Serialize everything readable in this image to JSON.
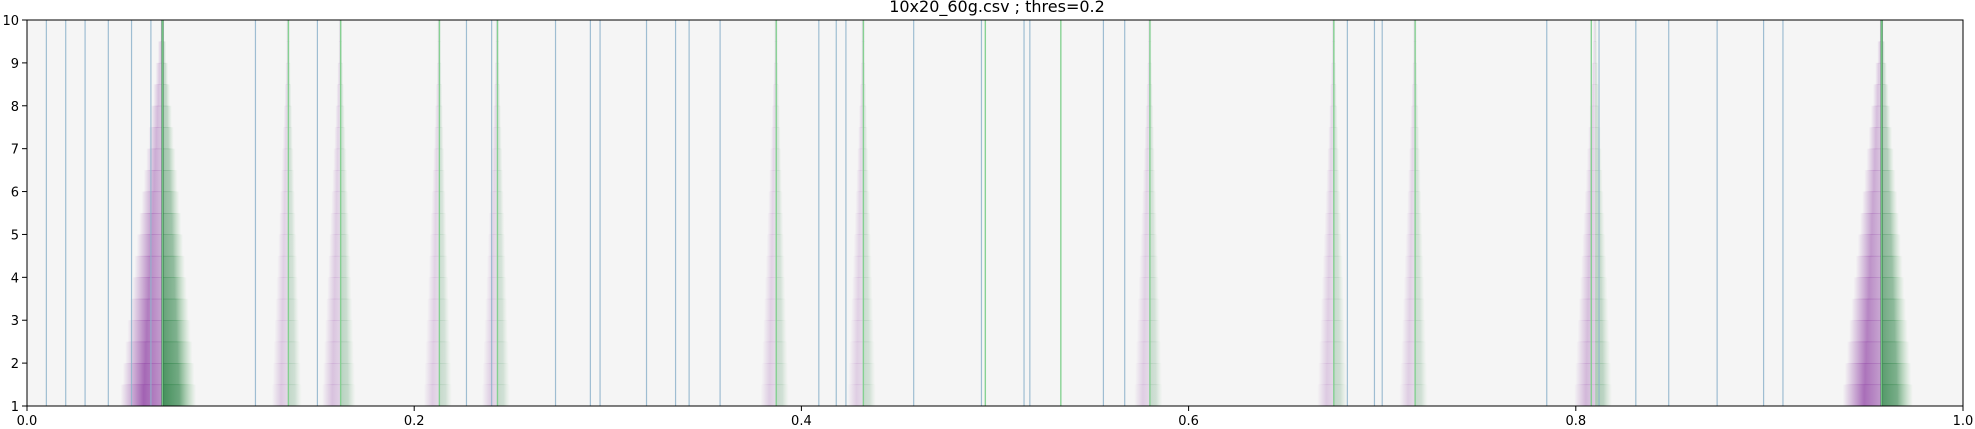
{
  "chart_data": {
    "type": "heatmap",
    "title": "10x20_60g.csv ; thres=0.2",
    "xlabel": "",
    "ylabel": "",
    "xlim": [
      0.0,
      1.0
    ],
    "ylim": [
      1,
      10
    ],
    "x_ticks": [
      "0.0",
      "0.2",
      "0.4",
      "0.6",
      "0.8",
      "1.0"
    ],
    "y_ticks": [
      "1",
      "2",
      "3",
      "4",
      "5",
      "6",
      "7",
      "8",
      "9",
      "10"
    ],
    "grid": false,
    "legend": "none",
    "colors": {
      "background": "#f5f5f5",
      "blue_lines": "#8fb4cc",
      "green_lines": "#7ccf8a",
      "purple": "#8e3fa3",
      "green": "#1b7837"
    },
    "blue_lines_x": [
      0.01,
      0.02,
      0.03,
      0.042,
      0.054,
      0.064,
      0.118,
      0.15,
      0.227,
      0.24,
      0.273,
      0.291,
      0.296,
      0.32,
      0.335,
      0.342,
      0.358,
      0.409,
      0.418,
      0.423,
      0.458,
      0.493,
      0.515,
      0.518,
      0.556,
      0.567,
      0.682,
      0.696,
      0.7,
      0.785,
      0.812,
      0.831,
      0.848,
      0.873,
      0.897,
      0.907
    ],
    "green_lines_x": [
      0.07,
      0.135,
      0.162,
      0.213,
      0.243,
      0.387,
      0.432,
      0.495,
      0.534,
      0.58,
      0.675,
      0.717,
      0.808,
      0.958
    ],
    "peaks": [
      {
        "x": 0.07,
        "intensity": 1.0
      },
      {
        "x": 0.958,
        "intensity": 0.9
      },
      {
        "x": 0.81,
        "intensity": 0.3
      },
      {
        "x": 0.162,
        "intensity": 0.22
      },
      {
        "x": 0.135,
        "intensity": 0.15
      },
      {
        "x": 0.213,
        "intensity": 0.12
      },
      {
        "x": 0.243,
        "intensity": 0.12
      },
      {
        "x": 0.387,
        "intensity": 0.12
      },
      {
        "x": 0.432,
        "intensity": 0.12
      },
      {
        "x": 0.58,
        "intensity": 0.12
      },
      {
        "x": 0.675,
        "intensity": 0.15
      },
      {
        "x": 0.717,
        "intensity": 0.12
      }
    ]
  }
}
